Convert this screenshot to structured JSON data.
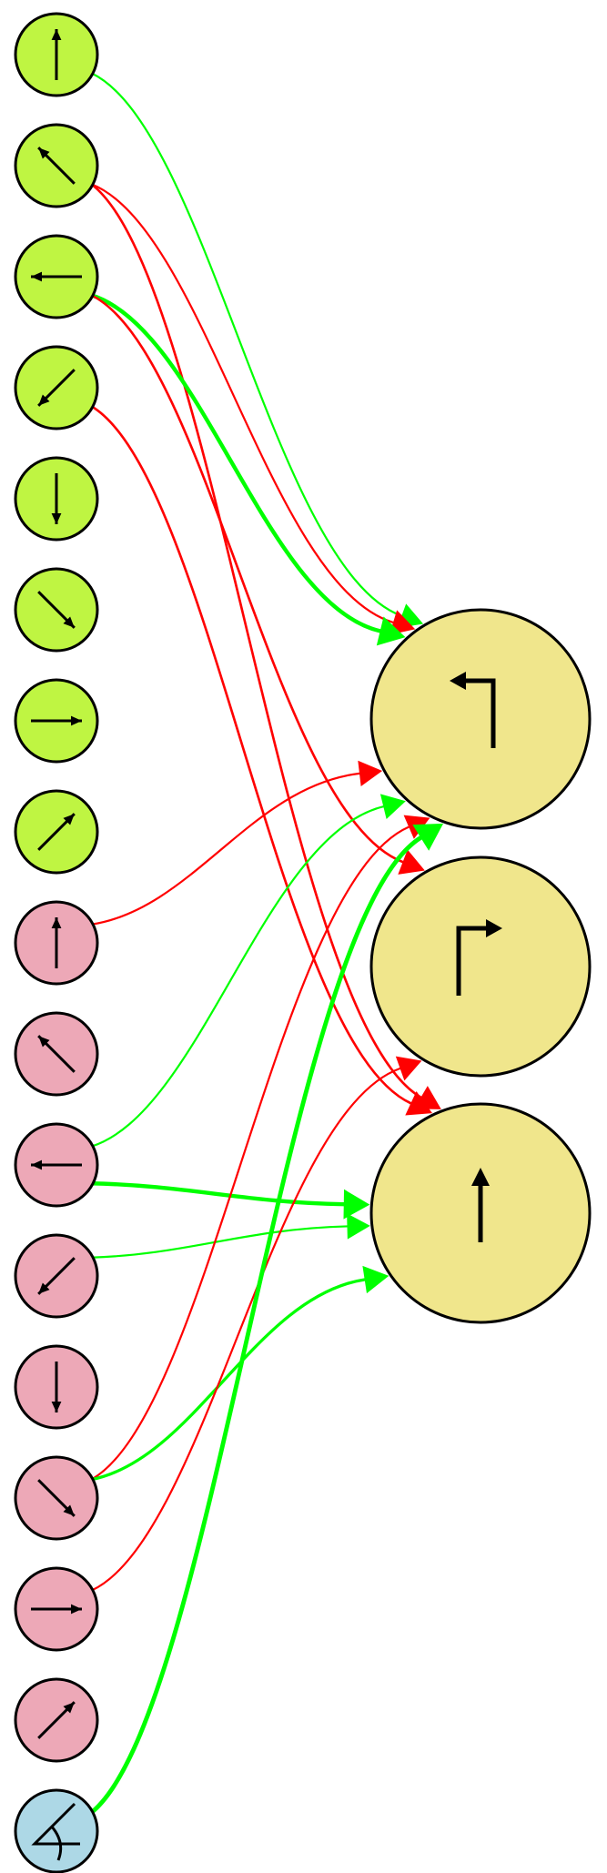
{
  "colors": {
    "input_top": "#bff542",
    "input_mid": "#eda8b7",
    "input_bottom": "#add8e6",
    "output": "#f0e68c",
    "excitatory": "#00ff00",
    "inhibitory": "#ff0000",
    "stroke": "#000000"
  },
  "inputs": [
    {
      "id": "a0",
      "group": "top",
      "icon": "arrow-up"
    },
    {
      "id": "a1",
      "group": "top",
      "icon": "arrow-up-left"
    },
    {
      "id": "a2",
      "group": "top",
      "icon": "arrow-left"
    },
    {
      "id": "a3",
      "group": "top",
      "icon": "arrow-down-left"
    },
    {
      "id": "a4",
      "group": "top",
      "icon": "arrow-down"
    },
    {
      "id": "a5",
      "group": "top",
      "icon": "arrow-down-right"
    },
    {
      "id": "a6",
      "group": "top",
      "icon": "arrow-right"
    },
    {
      "id": "a7",
      "group": "top",
      "icon": "arrow-up-right"
    },
    {
      "id": "b0",
      "group": "mid",
      "icon": "arrow-up"
    },
    {
      "id": "b1",
      "group": "mid",
      "icon": "arrow-up-left"
    },
    {
      "id": "b2",
      "group": "mid",
      "icon": "arrow-left"
    },
    {
      "id": "b3",
      "group": "mid",
      "icon": "arrow-down-left"
    },
    {
      "id": "b4",
      "group": "mid",
      "icon": "arrow-down"
    },
    {
      "id": "b5",
      "group": "mid",
      "icon": "arrow-down-right"
    },
    {
      "id": "b6",
      "group": "mid",
      "icon": "arrow-right"
    },
    {
      "id": "b7",
      "group": "mid",
      "icon": "arrow-up-right"
    },
    {
      "id": "c0",
      "group": "bottom",
      "icon": "angle"
    }
  ],
  "outputs": [
    {
      "id": "turn-left",
      "icon": "turn-left-arrow"
    },
    {
      "id": "turn-right",
      "icon": "turn-right-arrow"
    },
    {
      "id": "go-straight",
      "icon": "straight-arrow"
    }
  ],
  "connections": [
    {
      "from": "a0",
      "to": "turn-left",
      "sign": "excitatory",
      "weight": 1
    },
    {
      "from": "a1",
      "to": "turn-left",
      "sign": "inhibitory",
      "weight": 1
    },
    {
      "from": "a1",
      "to": "go-straight",
      "sign": "inhibitory",
      "weight": 1.2
    },
    {
      "from": "a2",
      "to": "turn-left",
      "sign": "excitatory",
      "weight": 2
    },
    {
      "from": "a2",
      "to": "turn-right",
      "sign": "inhibitory",
      "weight": 1.2
    },
    {
      "from": "a3",
      "to": "go-straight",
      "sign": "inhibitory",
      "weight": 1.2
    },
    {
      "from": "b0",
      "to": "turn-left",
      "sign": "inhibitory",
      "weight": 1
    },
    {
      "from": "b2",
      "to": "turn-left",
      "sign": "excitatory",
      "weight": 1
    },
    {
      "from": "b2",
      "to": "go-straight",
      "sign": "excitatory",
      "weight": 2
    },
    {
      "from": "b3",
      "to": "go-straight",
      "sign": "excitatory",
      "weight": 1
    },
    {
      "from": "b5",
      "to": "turn-left",
      "sign": "inhibitory",
      "weight": 1
    },
    {
      "from": "b5",
      "to": "go-straight",
      "sign": "excitatory",
      "weight": 1.5
    },
    {
      "from": "b6",
      "to": "turn-right",
      "sign": "inhibitory",
      "weight": 1
    },
    {
      "from": "c0",
      "to": "turn-left",
      "sign": "excitatory",
      "weight": 2.2
    }
  ]
}
